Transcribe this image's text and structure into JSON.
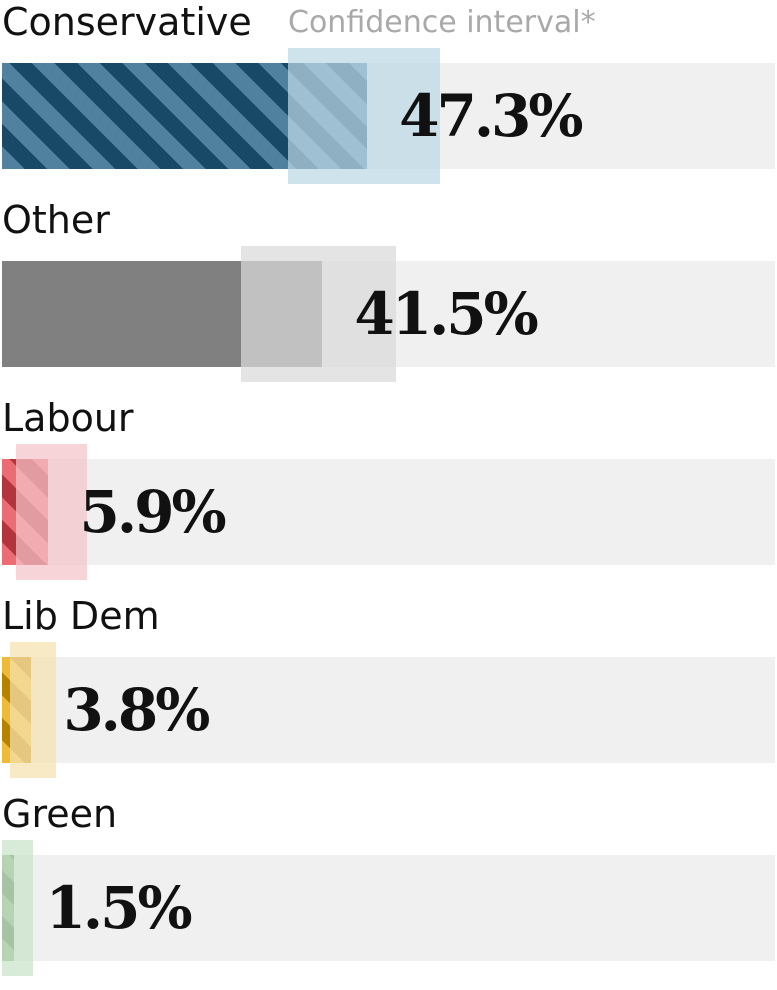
{
  "chart_data": {
    "type": "bar",
    "orientation": "horizontal",
    "confidence_interval_label": "Confidence interval*",
    "xlim": [
      0,
      100
    ],
    "grid": false,
    "bars": [
      {
        "category": "Conservative",
        "value": 47.3,
        "value_label": "47.3%",
        "ci": [
          37.0,
          56.8
        ],
        "color": "#1f5f85",
        "ci_color": "#bcd8e5",
        "hatched": true
      },
      {
        "category": "Other",
        "value": 41.5,
        "value_label": "41.5%",
        "ci": [
          31.0,
          51.0
        ],
        "color": "#808080",
        "ci_color": "#d9d9d9",
        "hatched": false
      },
      {
        "category": "Labour",
        "value": 5.9,
        "value_label": "5.9%",
        "ci": [
          1.8,
          11.0
        ],
        "color": "#e5434b",
        "ci_color": "#f4c3c7",
        "hatched": true
      },
      {
        "category": "Lib Dem",
        "value": 3.8,
        "value_label": "3.8%",
        "ci": [
          1.0,
          7.0
        ],
        "color": "#e9a800",
        "ci_color": "#f7e2b0",
        "hatched": true
      },
      {
        "category": "Green",
        "value": 1.5,
        "value_label": "1.5%",
        "ci": [
          0.0,
          4.0
        ],
        "color": "#5a9a5a",
        "ci_color": "#c9e2c9",
        "hatched": true
      }
    ]
  }
}
